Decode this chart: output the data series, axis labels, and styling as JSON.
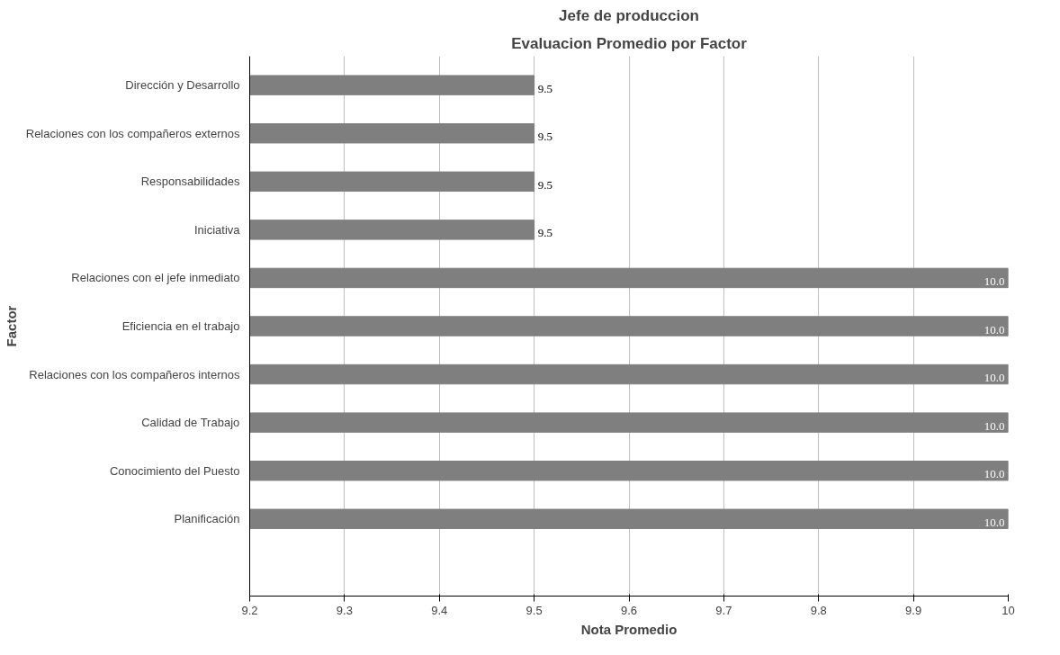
{
  "chart_data": {
    "type": "bar",
    "orientation": "horizontal",
    "title": "Jefe de produccion",
    "subtitle": "Evaluacion Promedio por Factor",
    "xlabel": "Nota Promedio",
    "ylabel": "Factor",
    "categories": [
      "Dirección y Desarrollo",
      "Relaciones con los compañeros externos",
      "Responsabilidades",
      "Iniciativa",
      "Relaciones con el jefe inmediato",
      "Eficiencia en el trabajo",
      "Relaciones con los compañeros internos",
      "Calidad de Trabajo",
      "Conocimiento del Puesto",
      "Planificación",
      null
    ],
    "values": [
      9.5,
      9.5,
      9.5,
      9.5,
      10,
      10,
      10,
      10,
      10,
      10,
      null
    ],
    "value_labels": [
      "9.5",
      "9.5",
      "9.5",
      "9.5",
      "10.0",
      "10.0",
      "10.0",
      "10.0",
      "10.0",
      "10.0",
      null
    ],
    "color": "#7f7f7f",
    "xlim": [
      9.2,
      10
    ],
    "xticks": [
      9.2,
      9.3,
      9.4,
      9.5,
      9.6,
      9.7,
      9.8,
      9.9,
      10
    ],
    "grid": "x"
  }
}
